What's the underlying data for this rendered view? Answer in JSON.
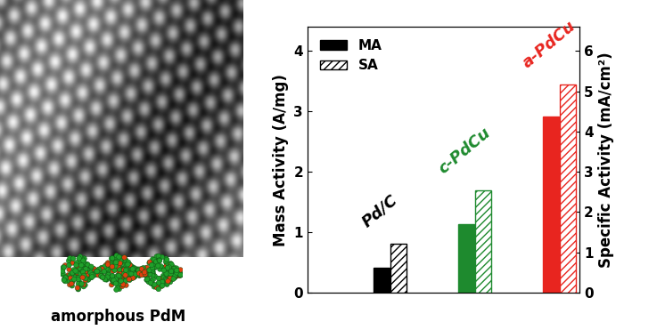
{
  "chart_data": {
    "type": "bar",
    "categories": [
      "Pd/C",
      "c-PdCu",
      "a-PdCu"
    ],
    "colors": [
      "#000000",
      "#1e8a2e",
      "#e8251f"
    ],
    "series": [
      {
        "name": "MA",
        "values": [
          0.42,
          1.14,
          2.92
        ]
      },
      {
        "name": "SA",
        "values": [
          1.22,
          2.55,
          5.16
        ],
        "axis": "y2"
      }
    ],
    "y_label": "Mass Activity (A/mg)",
    "y2_label": "Specific Activity (mA/cm²)",
    "ylim": [
      0,
      4.4
    ],
    "yticks": [
      0,
      1,
      2,
      3,
      4
    ],
    "y2lim": [
      0,
      6.6
    ],
    "y2ticks": [
      0,
      1,
      2,
      3,
      4,
      5,
      6
    ],
    "legend": "upper left",
    "tick_labels": "y"
  },
  "image_caption": "amorphous PdM"
}
